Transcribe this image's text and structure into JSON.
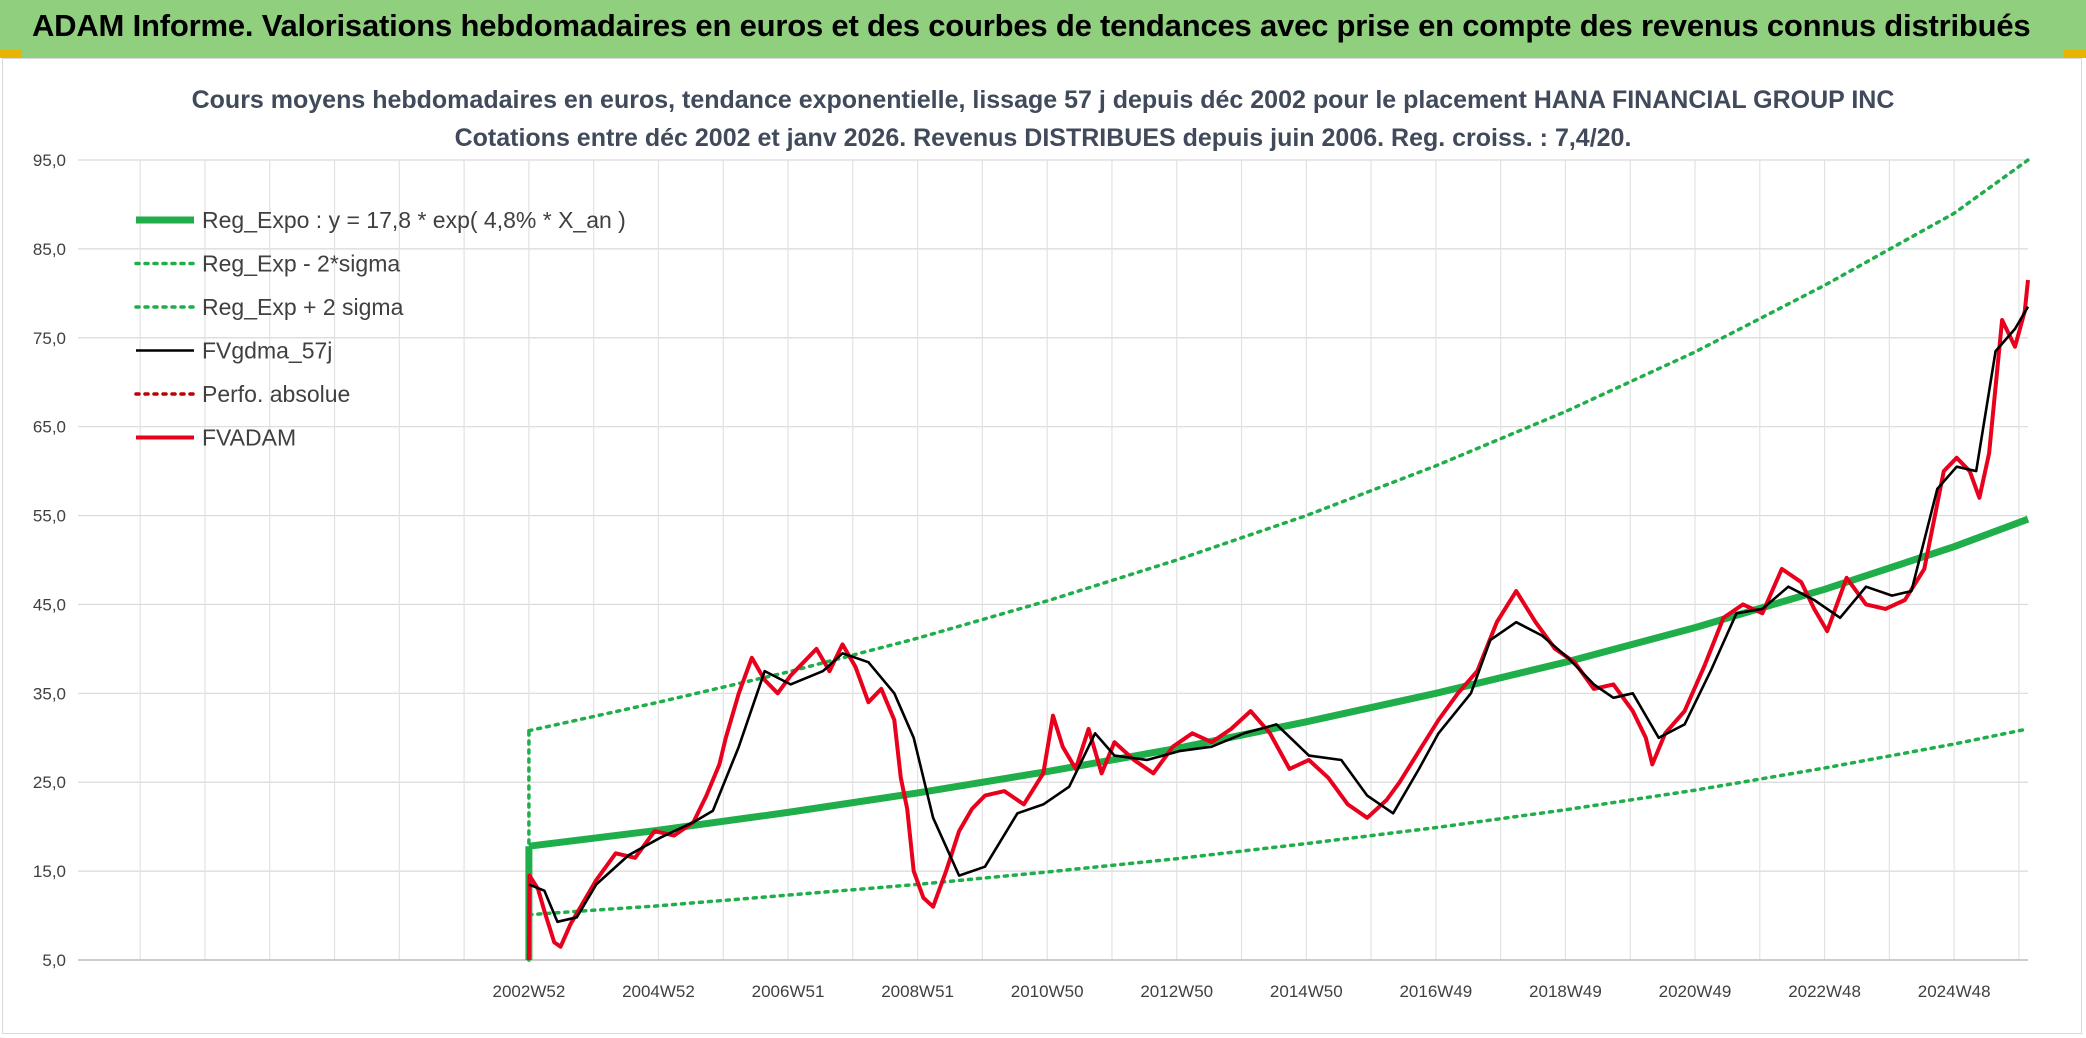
{
  "header": {
    "title": "ADAM Informe. Valorisations hebdomadaires en euros et des courbes de tendances avec prise en compte des revenus connus distribués"
  },
  "chart_data": {
    "type": "line",
    "title": "Cours moyens hebdomadaires en euros, tendance exponentielle, lissage 57 j depuis déc 2002 pour le placement HANA FINANCIAL GROUP INC",
    "subtitle": "Cotations entre déc 2002 et janv 2026. Revenus DISTRIBUES depuis juin 2006. Reg. croiss. : 7,4/20.",
    "xlabel": "",
    "ylabel": "",
    "ylim": [
      5,
      95
    ],
    "y_ticks": [
      "5,0",
      "15,0",
      "25,0",
      "35,0",
      "45,0",
      "55,0",
      "65,0",
      "75,0",
      "85,0",
      "95,0"
    ],
    "y_tick_values": [
      5,
      15,
      25,
      35,
      45,
      55,
      65,
      75,
      85,
      95
    ],
    "x_ticks": [
      "2002W52",
      "2004W52",
      "2006W51",
      "2008W51",
      "2010W50",
      "2012W50",
      "2014W50",
      "2016W49",
      "2018W49",
      "2020W49",
      "2022W48",
      "2024W48"
    ],
    "x_tick_values": [
      2002.96,
      2004.96,
      2006.96,
      2008.96,
      2010.96,
      2012.96,
      2014.96,
      2016.96,
      2018.96,
      2020.96,
      2022.96,
      2024.96
    ],
    "xlim": [
      1996.0,
      2026.1
    ],
    "grid": true,
    "legend_position": "top-left",
    "series": [
      {
        "name": "Reg_Expo : y = 17,8 * exp( 4,8% *  X_an )",
        "color": "#1fae4a",
        "style": "thick-solid",
        "x": [
          2002.96,
          2004.96,
          2006.96,
          2008.96,
          2010.96,
          2012.96,
          2014.96,
          2016.96,
          2018.96,
          2020.96,
          2022.96,
          2024.96,
          2026.1
        ],
        "y": [
          17.8,
          19.6,
          21.6,
          23.8,
          26.2,
          28.8,
          31.8,
          35.0,
          38.5,
          42.4,
          46.7,
          51.5,
          54.6
        ]
      },
      {
        "name": "Reg_Exp - 2*sigma",
        "color": "#1fae4a",
        "style": "dotted",
        "x": [
          2002.96,
          2004.96,
          2006.96,
          2008.96,
          2010.96,
          2012.96,
          2014.96,
          2016.96,
          2018.96,
          2020.96,
          2022.96,
          2024.96,
          2026.1
        ],
        "y": [
          10.1,
          11.1,
          12.3,
          13.5,
          14.9,
          16.4,
          18.1,
          19.9,
          21.9,
          24.1,
          26.6,
          29.3,
          31.0
        ]
      },
      {
        "name": "Reg_Exp + 2 sigma",
        "color": "#1fae4a",
        "style": "dotted",
        "x": [
          2002.96,
          2004.96,
          2006.96,
          2008.96,
          2010.96,
          2012.96,
          2014.96,
          2016.96,
          2018.96,
          2020.96,
          2022.96,
          2024.96,
          2026.1
        ],
        "y": [
          30.8,
          34.0,
          37.4,
          41.2,
          45.4,
          50.0,
          55.0,
          60.6,
          66.7,
          73.4,
          80.9,
          89.0,
          95.0
        ]
      },
      {
        "name": "FVgdma_57j",
        "color": "#000000",
        "style": "solid",
        "x": [
          2002.96,
          2003.2,
          2003.4,
          2003.7,
          2004.0,
          2004.5,
          2005.0,
          2005.5,
          2005.8,
          2006.2,
          2006.6,
          2007.0,
          2007.5,
          2007.8,
          2008.2,
          2008.6,
          2008.9,
          2009.2,
          2009.6,
          2010.0,
          2010.5,
          2010.9,
          2011.3,
          2011.7,
          2012.0,
          2012.5,
          2013.0,
          2013.5,
          2014.0,
          2014.5,
          2015.0,
          2015.5,
          2015.9,
          2016.3,
          2016.7,
          2017.0,
          2017.5,
          2017.8,
          2018.2,
          2018.6,
          2019.0,
          2019.4,
          2019.7,
          2020.0,
          2020.4,
          2020.8,
          2021.2,
          2021.6,
          2022.0,
          2022.4,
          2022.8,
          2023.2,
          2023.6,
          2024.0,
          2024.3,
          2024.7,
          2025.0,
          2025.3,
          2025.6,
          2025.9,
          2026.1
        ],
        "y": [
          13.5,
          12.8,
          9.3,
          9.8,
          13.5,
          16.8,
          18.8,
          20.5,
          21.8,
          29.0,
          37.5,
          36.0,
          37.5,
          39.5,
          38.5,
          35.0,
          30.0,
          21.0,
          14.5,
          15.5,
          21.5,
          22.5,
          24.5,
          30.5,
          28.0,
          27.5,
          28.5,
          29.0,
          30.5,
          31.5,
          28.0,
          27.5,
          23.5,
          21.5,
          26.5,
          30.5,
          35.0,
          41.0,
          43.0,
          41.5,
          39.0,
          36.0,
          34.5,
          35.0,
          30.0,
          31.5,
          37.5,
          44.0,
          44.5,
          47.0,
          45.5,
          43.5,
          47.0,
          46.0,
          46.5,
          58.0,
          60.5,
          60.0,
          73.5,
          76.0,
          78.5
        ]
      },
      {
        "name": "Perfo. absolue",
        "color": "#c00000",
        "style": "dotted",
        "x": [],
        "y": []
      },
      {
        "name": "FVADAM",
        "color": "#e8001c",
        "style": "thick-solid",
        "x": [
          2002.96,
          2002.97,
          2003.1,
          2003.2,
          2003.35,
          2003.45,
          2003.6,
          2003.8,
          2004.0,
          2004.3,
          2004.6,
          2004.9,
          2005.2,
          2005.5,
          2005.7,
          2005.9,
          2006.0,
          2006.2,
          2006.4,
          2006.6,
          2006.8,
          2007.0,
          2007.2,
          2007.4,
          2007.6,
          2007.8,
          2008.0,
          2008.2,
          2008.4,
          2008.6,
          2008.7,
          2008.8,
          2008.9,
          2009.05,
          2009.2,
          2009.4,
          2009.6,
          2009.8,
          2010.0,
          2010.3,
          2010.6,
          2010.9,
          2011.05,
          2011.2,
          2011.4,
          2011.6,
          2011.8,
          2012.0,
          2012.3,
          2012.6,
          2012.9,
          2013.2,
          2013.5,
          2013.8,
          2014.1,
          2014.4,
          2014.7,
          2015.0,
          2015.3,
          2015.6,
          2015.9,
          2016.2,
          2016.4,
          2016.7,
          2017.0,
          2017.3,
          2017.6,
          2017.9,
          2018.2,
          2018.5,
          2018.8,
          2019.1,
          2019.4,
          2019.7,
          2020.0,
          2020.2,
          2020.3,
          2020.5,
          2020.8,
          2021.1,
          2021.4,
          2021.7,
          2022.0,
          2022.3,
          2022.6,
          2022.8,
          2023.0,
          2023.3,
          2023.6,
          2023.9,
          2024.2,
          2024.5,
          2024.8,
          2025.0,
          2025.2,
          2025.35,
          2025.5,
          2025.7,
          2025.9,
          2026.05,
          2026.1
        ],
        "y": [
          5.0,
          14.5,
          13.0,
          10.5,
          7.0,
          6.5,
          9.0,
          11.5,
          14.0,
          17.0,
          16.5,
          19.5,
          19.0,
          20.5,
          23.5,
          27.0,
          30.0,
          35.0,
          39.0,
          36.5,
          35.0,
          37.0,
          38.5,
          40.0,
          37.5,
          40.5,
          38.0,
          34.0,
          35.5,
          32.0,
          25.5,
          22.0,
          15.0,
          12.0,
          11.0,
          15.0,
          19.5,
          22.0,
          23.5,
          24.0,
          22.5,
          26.0,
          32.5,
          29.0,
          26.5,
          31.0,
          26.0,
          29.5,
          27.5,
          26.0,
          29.0,
          30.5,
          29.5,
          31.0,
          33.0,
          30.5,
          26.5,
          27.5,
          25.5,
          22.5,
          21.0,
          23.0,
          25.0,
          28.5,
          32.0,
          35.0,
          37.5,
          43.0,
          46.5,
          43.0,
          40.0,
          38.5,
          35.5,
          36.0,
          33.0,
          30.0,
          27.0,
          30.5,
          33.0,
          38.0,
          43.5,
          45.0,
          44.0,
          49.0,
          47.5,
          44.5,
          42.0,
          48.0,
          45.0,
          44.5,
          45.5,
          49.0,
          60.0,
          61.5,
          60.0,
          57.0,
          62.0,
          77.0,
          74.0,
          78.0,
          81.5
        ]
      }
    ]
  }
}
